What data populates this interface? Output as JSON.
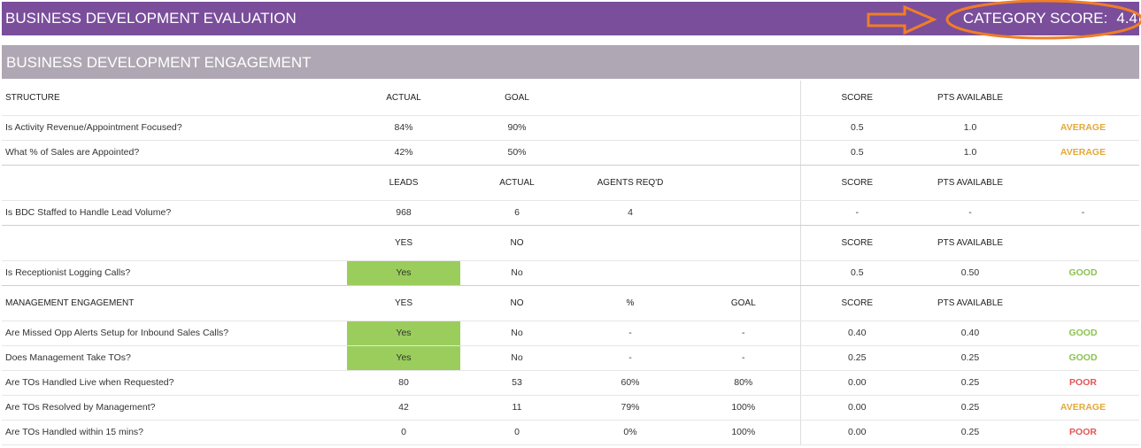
{
  "header": {
    "title": "BUSINESS DEVELOPMENT EVALUATION",
    "score_label": "CATEGORY SCORE:",
    "score_value": "4.4"
  },
  "section": {
    "title": "BUSINESS DEVELOPMENT ENGAGEMENT"
  },
  "colors": {
    "header_bg": "#7a4e9b",
    "section_bg": "#afa7b3",
    "highlight_green": "#9acd5c",
    "annotation_orange": "#f07e26",
    "average": "#e3a83b",
    "good": "#8cc152",
    "poor": "#e25555"
  },
  "structure": {
    "headers": {
      "label": "STRUCTURE",
      "actual": "ACTUAL",
      "goal": "GOAL",
      "score": "SCORE",
      "pts": "PTS AVAILABLE"
    },
    "rows": [
      {
        "label": "Is Activity Revenue/Appointment Focused?",
        "actual": "84%",
        "goal": "90%",
        "score": "0.5",
        "pts": "1.0",
        "rating": "AVERAGE"
      },
      {
        "label": "What % of Sales are Appointed?",
        "actual": "42%",
        "goal": "50%",
        "score": "0.5",
        "pts": "1.0",
        "rating": "AVERAGE"
      }
    ]
  },
  "staffing": {
    "headers": {
      "leads": "LEADS",
      "actual": "ACTUAL",
      "agents": "AGENTS REQ'D",
      "score": "SCORE",
      "pts": "PTS AVAILABLE"
    },
    "rows": [
      {
        "label": "Is BDC Staffed to Handle Lead Volume?",
        "leads": "968",
        "actual": "6",
        "agents": "4",
        "score": "-",
        "pts": "-",
        "rating": "-"
      }
    ]
  },
  "receptionist": {
    "headers": {
      "yes": "YES",
      "no": "NO",
      "score": "SCORE",
      "pts": "PTS AVAILABLE"
    },
    "rows": [
      {
        "label": "Is Receptionist Logging Calls?",
        "yes": "Yes",
        "no": "No",
        "score": "0.5",
        "pts": "0.50",
        "rating": "GOOD"
      }
    ]
  },
  "management": {
    "headers": {
      "label": "MANAGEMENT ENGAGEMENT",
      "yes": "YES",
      "no": "NO",
      "pct": "%",
      "goal": "GOAL",
      "score": "SCORE",
      "pts": "PTS AVAILABLE"
    },
    "rows": [
      {
        "label": "Are Missed Opp Alerts Setup for Inbound Sales Calls?",
        "yes": "Yes",
        "no": "No",
        "pct": "-",
        "goal": "-",
        "score": "0.40",
        "pts": "0.40",
        "rating": "GOOD"
      },
      {
        "label": "Does Management Take TOs?",
        "yes": "Yes",
        "no": "No",
        "pct": "-",
        "goal": "-",
        "score": "0.25",
        "pts": "0.25",
        "rating": "GOOD"
      },
      {
        "label": "Are TOs Handled Live when Requested?",
        "yes": "80",
        "no": "53",
        "pct": "60%",
        "goal": "80%",
        "score": "0.00",
        "pts": "0.25",
        "rating": "POOR"
      },
      {
        "label": "Are TOs Resolved by Management?",
        "yes": "42",
        "no": "11",
        "pct": "79%",
        "goal": "100%",
        "score": "0.00",
        "pts": "0.25",
        "rating": "AVERAGE"
      },
      {
        "label": "Are TOs Handled within 15 mins?",
        "yes": "0",
        "no": "0",
        "pct": "0%",
        "goal": "100%",
        "score": "0.00",
        "pts": "0.25",
        "rating": "POOR"
      }
    ]
  }
}
